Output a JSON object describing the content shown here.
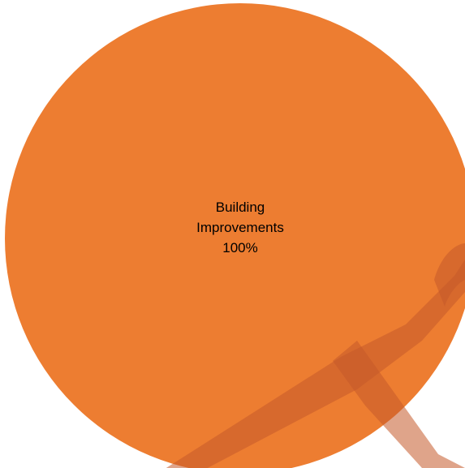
{
  "chart_data": {
    "type": "pie",
    "title": "",
    "slices": [
      {
        "name": "Building Improvements",
        "value": 100,
        "percent_label": "100%",
        "label_lines": [
          "Building",
          "Improvements",
          "100%"
        ],
        "color": "#ed7d31"
      }
    ],
    "legend": "none",
    "watermark_color": "#c55a2a"
  }
}
